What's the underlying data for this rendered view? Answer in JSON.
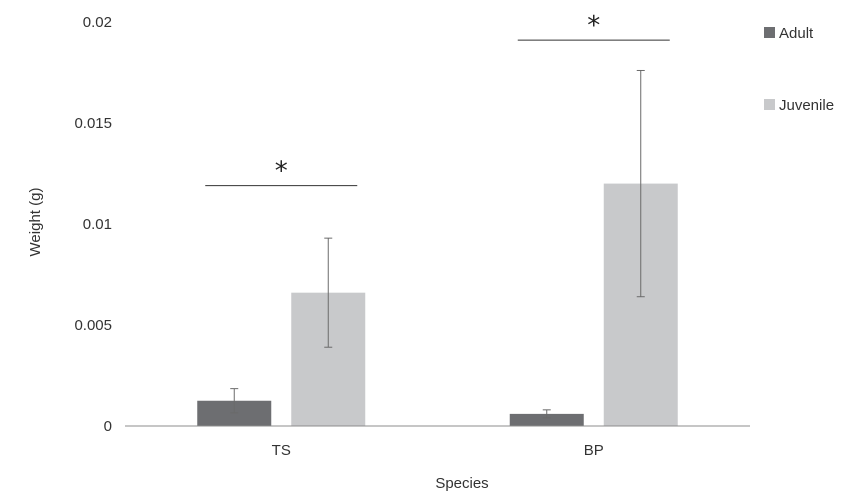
{
  "chart_data": {
    "type": "bar",
    "title": "",
    "xlabel": "Species",
    "ylabel": "Weight (g)",
    "categories": [
      "TS",
      "BP"
    ],
    "ylim": [
      0,
      0.02
    ],
    "yticks": [
      0,
      0.005,
      0.01,
      0.015,
      0.02
    ],
    "ytick_labels": [
      "0",
      "0.005",
      "0.01",
      "0.015",
      "0.02"
    ],
    "grid": false,
    "legend_position": "right",
    "series": [
      {
        "name": "Adult",
        "color": "#6d6e71",
        "values": [
          0.00125,
          0.0006
        ],
        "error": [
          0.0006,
          0.0002
        ]
      },
      {
        "name": "Juvenile",
        "color": "#c8c9cb",
        "values": [
          0.0066,
          0.012
        ],
        "error": [
          0.0027,
          0.0056
        ]
      }
    ],
    "annotations": [
      {
        "text": "*",
        "category": "TS",
        "level": 0.0119
      },
      {
        "text": "*",
        "category": "BP",
        "level": 0.0191
      }
    ]
  }
}
